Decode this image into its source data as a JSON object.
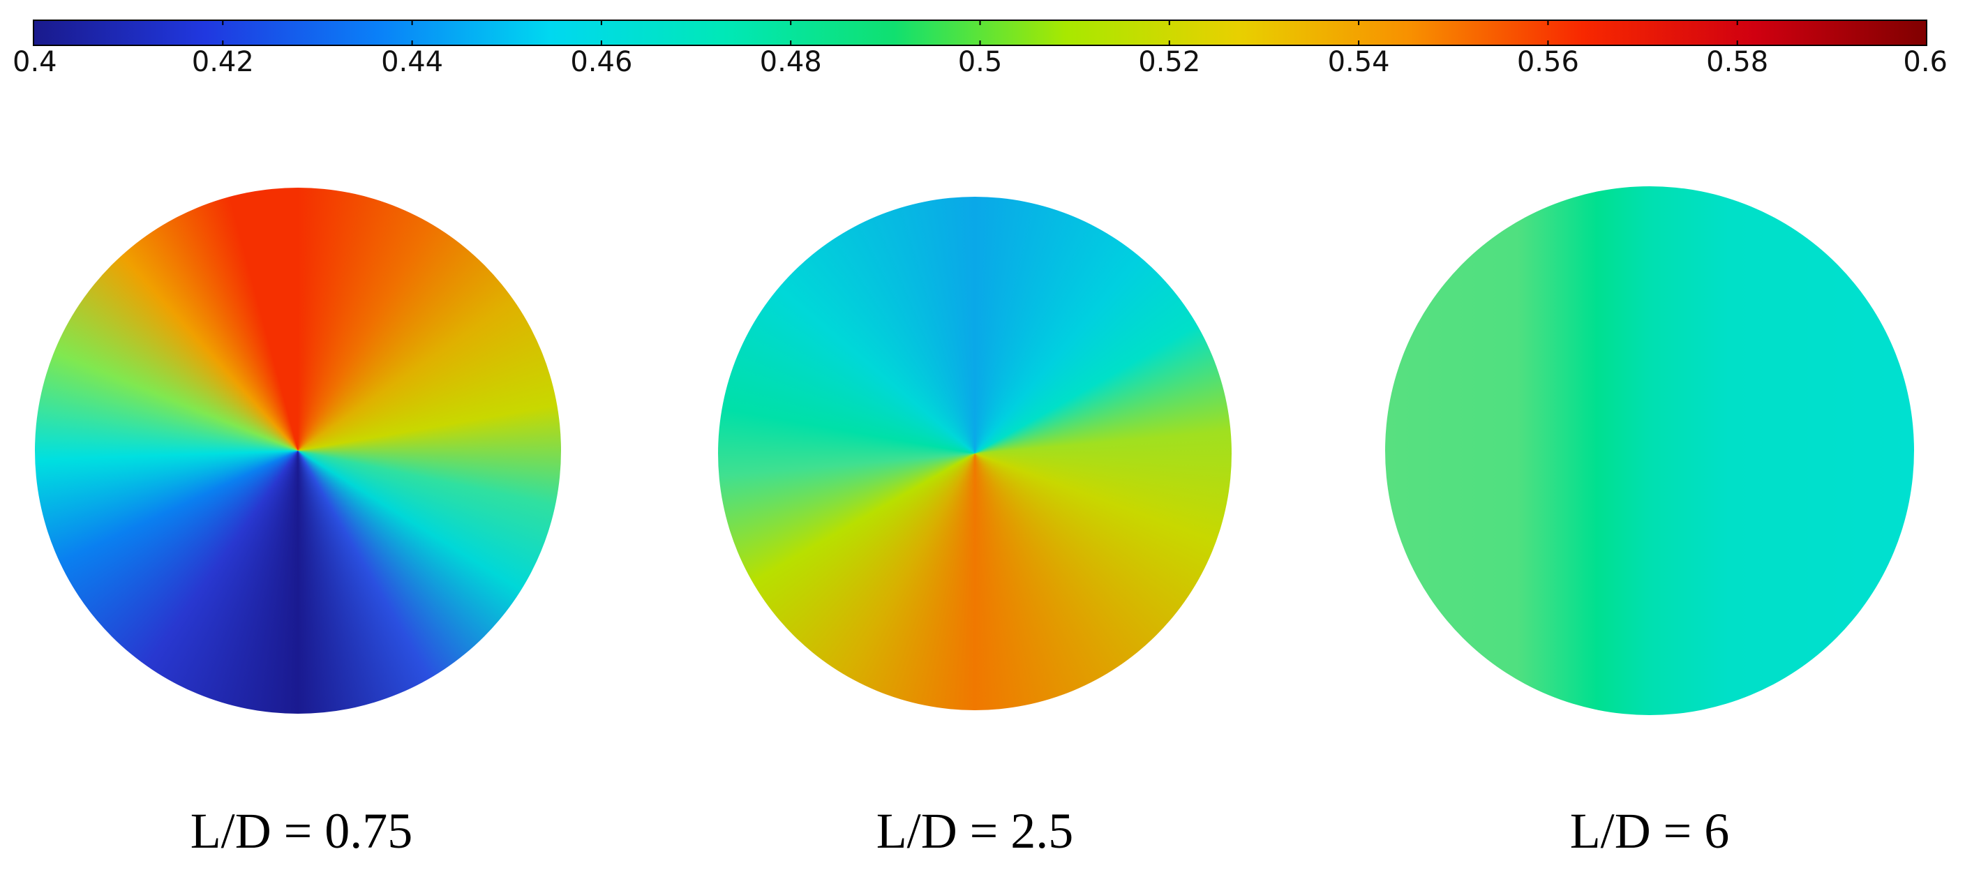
{
  "chart_data": {
    "type": "colorbar-panels",
    "colorbar": {
      "lim": [
        0.4,
        0.6
      ],
      "ticks": [
        0.4,
        0.42,
        0.44,
        0.46,
        0.48,
        0.5,
        0.52,
        0.54,
        0.56,
        0.58,
        0.6
      ],
      "colors": [
        "#1a1a8c",
        "#2038e0",
        "#0a80f8",
        "#00d8f0",
        "#00e8b8",
        "#10e070",
        "#a8e800",
        "#e8d000",
        "#f89000",
        "#f82800",
        "#d00010",
        "#800000"
      ]
    },
    "panels": [
      {
        "label": "L/D = 0.75"
      },
      {
        "label": "L/D = 2.5"
      },
      {
        "label": "L/D = 6"
      }
    ]
  }
}
